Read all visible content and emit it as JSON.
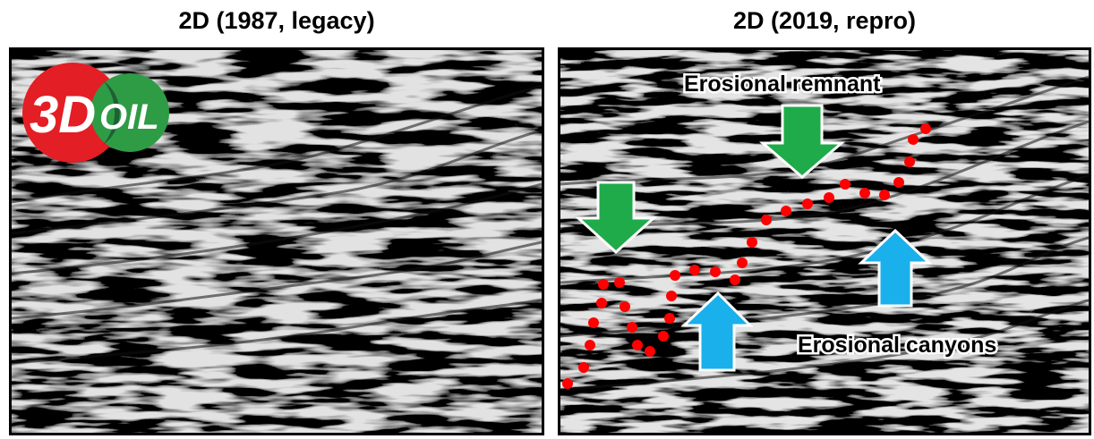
{
  "panels": [
    {
      "title": "2D (1987, legacy)"
    },
    {
      "title": "2D (2019, repro)"
    }
  ],
  "logo": {
    "text_3d": "3D",
    "text_oil": "OIL",
    "colors": {
      "red": "#e31e24",
      "green": "#2e9b45",
      "dark_green": "#1f5f35"
    }
  },
  "annotations": {
    "remnant_label": "Erosional remnant",
    "canyons_label": "Erosional canyons"
  },
  "colors": {
    "down_arrow": "#1fab4a",
    "up_arrow": "#1ab0ec",
    "dots": "#ff0000"
  }
}
